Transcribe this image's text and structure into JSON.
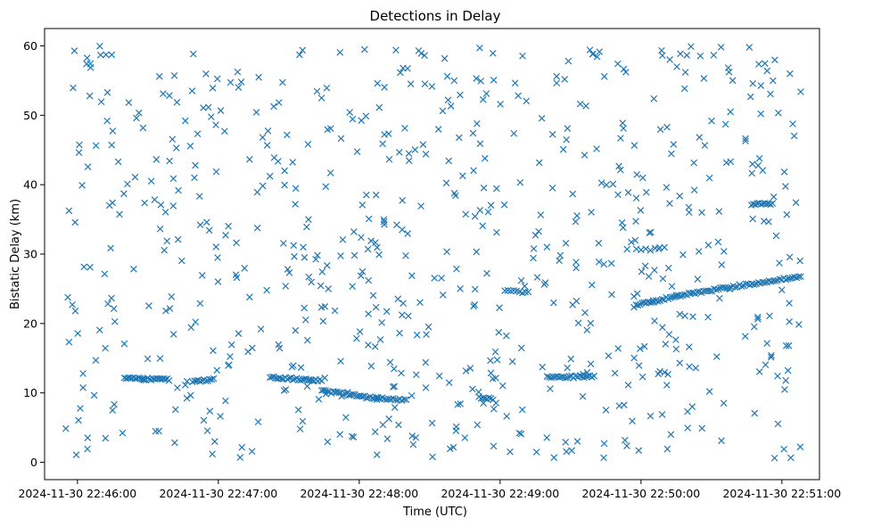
{
  "chart_data": {
    "type": "scatter",
    "title": "Detections in Delay",
    "xlabel": "Time (UTC)",
    "ylabel": "Bistatic Delay (km)",
    "xlim_seconds": [
      -14,
      316
    ],
    "ylim": [
      -2.5,
      62.5
    ],
    "x_ticks": [
      {
        "seconds": 0,
        "label": "2024-11-30 22:46:00"
      },
      {
        "seconds": 60,
        "label": "2024-11-30 22:47:00"
      },
      {
        "seconds": 120,
        "label": "2024-11-30 22:48:00"
      },
      {
        "seconds": 180,
        "label": "2024-11-30 22:49:00"
      },
      {
        "seconds": 240,
        "label": "2024-11-30 22:50:00"
      },
      {
        "seconds": 300,
        "label": "2024-11-30 22:51:00"
      }
    ],
    "y_ticks": [
      0,
      10,
      20,
      30,
      40,
      50,
      60
    ],
    "marker": "x",
    "series_color": "#1f77b4",
    "series": [
      {
        "name": "Detections",
        "tracks": [
          {
            "x_start": 20,
            "x_end": 39,
            "y_start": 12.1,
            "y_end": 11.9,
            "count": 26
          },
          {
            "x_start": 49,
            "x_end": 58,
            "y_start": 11.6,
            "y_end": 11.9,
            "count": 12
          },
          {
            "x_start": 82,
            "x_end": 104,
            "y_start": 12.2,
            "y_end": 11.8,
            "count": 28
          },
          {
            "x_start": 104,
            "x_end": 128,
            "y_start": 10.3,
            "y_end": 9.2,
            "count": 30
          },
          {
            "x_start": 128,
            "x_end": 140,
            "y_start": 9.3,
            "y_end": 9.0,
            "count": 14
          },
          {
            "x_start": 171,
            "x_end": 177,
            "y_start": 9.4,
            "y_end": 9.1,
            "count": 8
          },
          {
            "x_start": 200,
            "x_end": 220,
            "y_start": 12.2,
            "y_end": 12.4,
            "count": 24
          },
          {
            "x_start": 237,
            "x_end": 255,
            "y_start": 22.5,
            "y_end": 24.0,
            "count": 22
          },
          {
            "x_start": 255,
            "x_end": 308,
            "y_start": 24.0,
            "y_end": 26.8,
            "count": 60
          },
          {
            "x_start": 287,
            "x_end": 296,
            "y_start": 37.2,
            "y_end": 37.2,
            "count": 12
          },
          {
            "x_start": 182,
            "x_end": 192,
            "y_start": 24.7,
            "y_end": 24.5,
            "count": 9
          },
          {
            "x_start": 238,
            "x_end": 250,
            "y_start": 30.6,
            "y_end": 30.8,
            "count": 7
          }
        ],
        "scatter": {
          "x_min": -5,
          "x_max": 308,
          "y_min": 0.5,
          "y_max": 60,
          "count": 700
        }
      }
    ]
  }
}
